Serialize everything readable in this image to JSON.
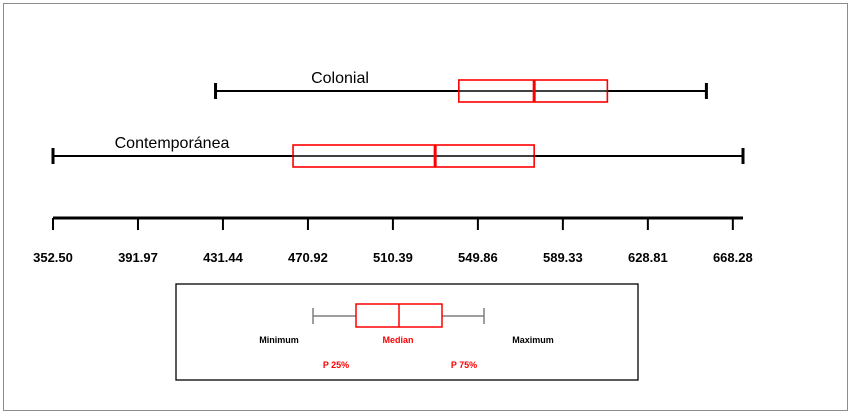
{
  "chart_data": {
    "type": "boxplot",
    "orientation": "horizontal",
    "series": [
      {
        "name": "Colonial",
        "min": 428,
        "q1": 541,
        "median": 576,
        "q3": 610,
        "max": 656
      },
      {
        "name": "Contemporánea",
        "min": 352.5,
        "q1": 464,
        "median": 530,
        "q3": 576,
        "max": 673
      }
    ],
    "xticks": [
      "352.50",
      "391.97",
      "431.44",
      "470.92",
      "510.39",
      "549.86",
      "589.33",
      "628.81",
      "668.28"
    ],
    "xtick_values": [
      352.5,
      391.97,
      431.44,
      470.92,
      510.39,
      549.86,
      589.33,
      628.81,
      668.28
    ],
    "xlim": [
      352.5,
      673
    ],
    "colors": {
      "box": "#ff0000",
      "whisker": "#000000",
      "legend_whisker": "#7f7f7f"
    },
    "legend": {
      "minimum": "Minimum",
      "median": "Median",
      "maximum": "Maximum",
      "p25": "P 25%",
      "p75": "P 75%"
    }
  }
}
